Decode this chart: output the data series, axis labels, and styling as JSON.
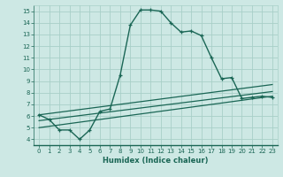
{
  "xlabel": "Humidex (Indice chaleur)",
  "bg_color": "#cde8e4",
  "grid_color": "#a8d0c8",
  "line_color": "#1a6655",
  "xlim": [
    -0.5,
    23.5
  ],
  "ylim": [
    3.5,
    15.5
  ],
  "xtick_labels": [
    "0",
    "1",
    "2",
    "3",
    "4",
    "5",
    "6",
    "7",
    "8",
    "9",
    "10",
    "11",
    "12",
    "13",
    "14",
    "15",
    "16",
    "17",
    "18",
    "19",
    "20",
    "21",
    "22",
    "23"
  ],
  "xtick_vals": [
    0,
    1,
    2,
    3,
    4,
    5,
    6,
    7,
    8,
    9,
    10,
    11,
    12,
    13,
    14,
    15,
    16,
    17,
    18,
    19,
    20,
    21,
    22,
    23
  ],
  "ytick_vals": [
    4,
    5,
    6,
    7,
    8,
    9,
    10,
    11,
    12,
    13,
    14,
    15
  ],
  "line1_x": [
    0,
    1,
    2,
    3,
    4,
    5,
    6,
    7,
    8,
    9,
    10,
    11,
    12,
    13,
    14,
    15,
    16,
    17,
    18,
    19,
    20,
    21,
    22,
    23
  ],
  "line1_y": [
    6.1,
    5.7,
    4.8,
    4.8,
    4.0,
    4.8,
    6.4,
    6.6,
    9.5,
    13.8,
    15.1,
    15.1,
    15.0,
    14.0,
    13.2,
    13.3,
    12.9,
    11.0,
    9.2,
    9.3,
    7.5,
    7.6,
    7.7,
    7.6
  ],
  "line2_x": [
    0,
    23
  ],
  "line2_y": [
    5.0,
    7.7
  ],
  "line3_x": [
    0,
    23
  ],
  "line3_y": [
    5.6,
    8.1
  ],
  "line4_x": [
    0,
    23
  ],
  "line4_y": [
    6.1,
    8.7
  ],
  "xlabel_fontsize": 6.0,
  "tick_fontsize": 5.0
}
